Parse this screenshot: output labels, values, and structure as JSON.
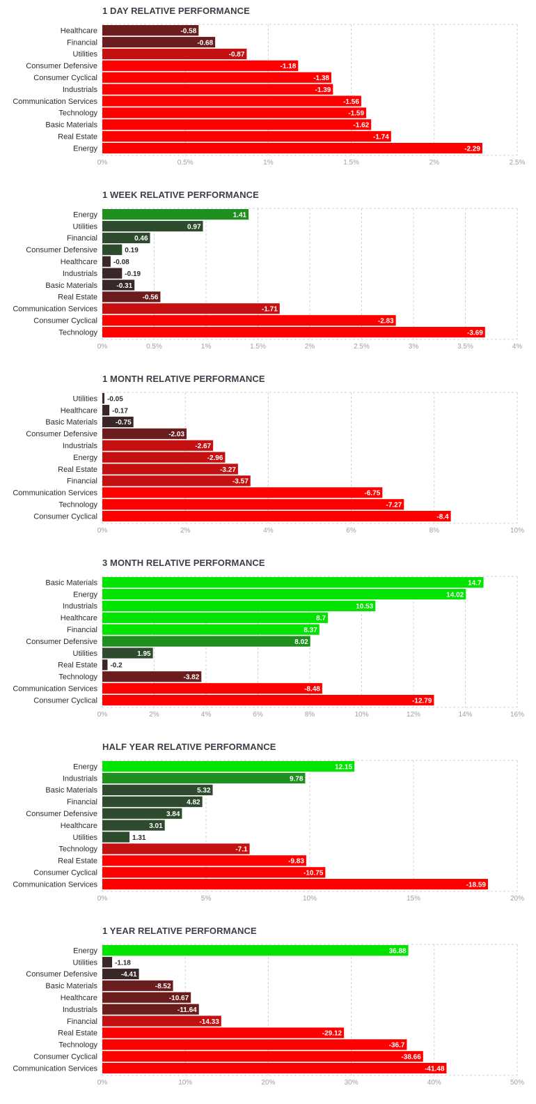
{
  "chart_data": [
    {
      "type": "bar",
      "orientation": "horizontal",
      "title": "1 DAY RELATIVE PERFORMANCE",
      "categories": [
        "Healthcare",
        "Financial",
        "Utilities",
        "Consumer Defensive",
        "Consumer Cyclical",
        "Industrials",
        "Communication Services",
        "Technology",
        "Basic Materials",
        "Real Estate",
        "Energy"
      ],
      "values": [
        -0.58,
        -0.68,
        -0.87,
        -1.18,
        -1.38,
        -1.39,
        -1.56,
        -1.59,
        -1.62,
        -1.74,
        -2.29
      ],
      "value_labels": [
        "-0.58",
        "-0.68",
        "-0.87",
        "-1.18",
        "-1.38",
        "-1.39",
        "-1.56",
        "-1.59",
        "-1.62",
        "-1.74",
        "-2.29"
      ],
      "xlim": [
        0,
        2.5
      ],
      "ticks": [
        0,
        0.5,
        1,
        1.5,
        2,
        2.5
      ],
      "tick_labels": [
        "0%",
        "0.5%",
        "1%",
        "1.5%",
        "2%",
        "2.5%"
      ],
      "bar_length": "absolute value",
      "grid": true
    },
    {
      "type": "bar",
      "orientation": "horizontal",
      "title": "1 WEEK RELATIVE PERFORMANCE",
      "categories": [
        "Energy",
        "Utilities",
        "Financial",
        "Consumer Defensive",
        "Healthcare",
        "Industrials",
        "Basic Materials",
        "Real Estate",
        "Communication Services",
        "Consumer Cyclical",
        "Technology"
      ],
      "values": [
        1.41,
        0.97,
        0.46,
        0.19,
        -0.08,
        -0.19,
        -0.31,
        -0.56,
        -1.71,
        -2.83,
        -3.69
      ],
      "value_labels": [
        "1.41",
        "0.97",
        "0.46",
        "0.19",
        "-0.08",
        "-0.19",
        "-0.31",
        "-0.56",
        "-1.71",
        "-2.83",
        "-3.69"
      ],
      "xlim": [
        0,
        4
      ],
      "ticks": [
        0,
        0.5,
        1,
        1.5,
        2,
        2.5,
        3,
        3.5,
        4
      ],
      "tick_labels": [
        "0%",
        "0.5%",
        "1%",
        "1.5%",
        "2%",
        "2.5%",
        "3%",
        "3.5%",
        "4%"
      ],
      "bar_length": "absolute value",
      "grid": true
    },
    {
      "type": "bar",
      "orientation": "horizontal",
      "title": "1 MONTH RELATIVE PERFORMANCE",
      "categories": [
        "Utilities",
        "Healthcare",
        "Basic Materials",
        "Consumer Defensive",
        "Industrials",
        "Energy",
        "Real Estate",
        "Financial",
        "Communication Services",
        "Technology",
        "Consumer Cyclical"
      ],
      "values": [
        -0.05,
        -0.17,
        -0.75,
        -2.03,
        -2.67,
        -2.96,
        -3.27,
        -3.57,
        -6.75,
        -7.27,
        -8.4
      ],
      "value_labels": [
        "-0.05",
        "-0.17",
        "-0.75",
        "-2.03",
        "-2.67",
        "-2.96",
        "-3.27",
        "-3.57",
        "-6.75",
        "-7.27",
        "-8.4"
      ],
      "xlim": [
        0,
        10
      ],
      "ticks": [
        0,
        2,
        4,
        6,
        8,
        10
      ],
      "tick_labels": [
        "0%",
        "2%",
        "4%",
        "6%",
        "8%",
        "10%"
      ],
      "bar_length": "absolute value",
      "grid": true
    },
    {
      "type": "bar",
      "orientation": "horizontal",
      "title": "3 MONTH RELATIVE PERFORMANCE",
      "categories": [
        "Basic Materials",
        "Energy",
        "Industrials",
        "Healthcare",
        "Financial",
        "Consumer Defensive",
        "Utilities",
        "Real Estate",
        "Technology",
        "Communication Services",
        "Consumer Cyclical"
      ],
      "values": [
        14.7,
        14.02,
        10.53,
        8.7,
        8.37,
        8.02,
        1.95,
        -0.2,
        -3.82,
        -8.48,
        -12.79
      ],
      "value_labels": [
        "14.7",
        "14.02",
        "10.53",
        "8.7",
        "8.37",
        "8.02",
        "1.95",
        "-0.2",
        "-3.82",
        "-8.48",
        "-12.79"
      ],
      "xlim": [
        0,
        16
      ],
      "ticks": [
        0,
        2,
        4,
        6,
        8,
        10,
        12,
        14,
        16
      ],
      "tick_labels": [
        "0%",
        "2%",
        "4%",
        "6%",
        "8%",
        "10%",
        "12%",
        "14%",
        "16%"
      ],
      "bar_length": "absolute value",
      "grid": true
    },
    {
      "type": "bar",
      "orientation": "horizontal",
      "title": "HALF YEAR RELATIVE PERFORMANCE",
      "categories": [
        "Energy",
        "Industrials",
        "Basic Materials",
        "Financial",
        "Consumer Defensive",
        "Healthcare",
        "Utilities",
        "Technology",
        "Real Estate",
        "Consumer Cyclical",
        "Communication Services"
      ],
      "values": [
        12.15,
        9.78,
        5.32,
        4.82,
        3.84,
        3.01,
        1.31,
        -7.1,
        -9.83,
        -10.75,
        -18.59
      ],
      "value_labels": [
        "12.15",
        "9.78",
        "5.32",
        "4.82",
        "3.84",
        "3.01",
        "1.31",
        "-7.1",
        "-9.83",
        "-10.75",
        "-18.59"
      ],
      "xlim": [
        0,
        20
      ],
      "ticks": [
        0,
        5,
        10,
        15,
        20
      ],
      "tick_labels": [
        "0%",
        "5%",
        "10%",
        "15%",
        "20%"
      ],
      "bar_length": "absolute value",
      "grid": true
    },
    {
      "type": "bar",
      "orientation": "horizontal",
      "title": "1 YEAR RELATIVE PERFORMANCE",
      "categories": [
        "Energy",
        "Utilities",
        "Consumer Defensive",
        "Basic Materials",
        "Healthcare",
        "Industrials",
        "Financial",
        "Real Estate",
        "Technology",
        "Consumer Cyclical",
        "Communication Services"
      ],
      "values": [
        36.88,
        -1.18,
        -4.41,
        -8.52,
        -10.67,
        -11.64,
        -14.33,
        -29.12,
        -36.7,
        -38.66,
        -41.48
      ],
      "value_labels": [
        "36.88",
        "-1.18",
        "-4.41",
        "-8.52",
        "-10.67",
        "-11.64",
        "-14.33",
        "-29.12",
        "-36.7",
        "-38.66",
        "-41.48"
      ],
      "xlim": [
        0,
        50
      ],
      "ticks": [
        0,
        10,
        20,
        30,
        40,
        50
      ],
      "tick_labels": [
        "0%",
        "10%",
        "20%",
        "30%",
        "40%",
        "50%"
      ],
      "bar_length": "absolute value",
      "grid": true
    }
  ],
  "colors": {
    "positive_strong": "#00e400",
    "positive_mid": "#1f8f1f",
    "positive_weak": "#2e4b2e",
    "neutral_dark": "#3a2828",
    "negative_weak": "#6b1c1c",
    "negative_mid": "#c41010",
    "negative_strong": "#ff0000",
    "grid": "#d0d0d0",
    "label_outside": "#2b2b2b",
    "label_inside": "#ffffff"
  }
}
